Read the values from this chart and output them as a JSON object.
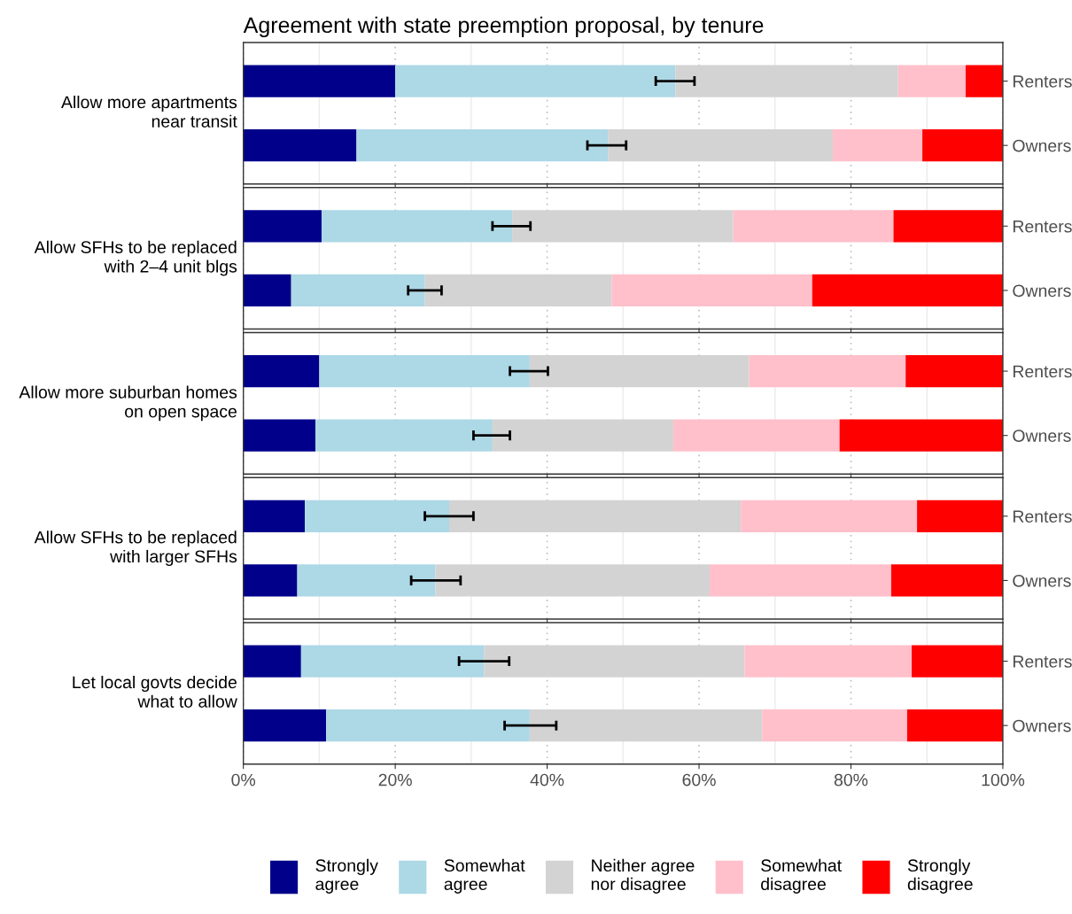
{
  "chart_data": [
    {
      "type": "bar",
      "orientation": "horizontal",
      "stacked": true,
      "title": "Agreement with state preemption proposal, by tenure",
      "ylabel": "Allow more apartments\nnear transit",
      "categories": [
        "Renters",
        "Owners"
      ],
      "xlim": [
        0,
        100
      ],
      "xticks": [
        {
          "value": 0,
          "label": null
        },
        {
          "value": 20,
          "label": null
        },
        {
          "value": 40,
          "label": null
        },
        {
          "value": 60,
          "label": null
        },
        {
          "value": 80,
          "label": null
        },
        {
          "value": 100,
          "label": null
        }
      ],
      "tick_labels": "y",
      "grid": "x",
      "legend": "bottom",
      "series": [
        {
          "name": "Strongly\nagree",
          "color": "#00008b",
          "values": [
            20.0,
            14.9
          ]
        },
        {
          "name": "Somewhat\nagree",
          "color": "#add8e6",
          "values": [
            36.9,
            33.1
          ],
          "errors": [
            [
              54.3,
              59.4
            ],
            [
              45.3,
              50.4
            ]
          ]
        },
        {
          "name": "Neither agree\nnor disagree",
          "color": "#d3d3d3",
          "values": [
            29.3,
            29.6
          ]
        },
        {
          "name": "Somewhat\ndisagree",
          "color": "#ffc0cb",
          "values": [
            8.9,
            11.8
          ]
        },
        {
          "name": "Strongly\ndisagree",
          "color": "#ff0000",
          "values": [
            4.9,
            10.6
          ]
        }
      ]
    },
    {
      "type": "bar",
      "orientation": "horizontal",
      "stacked": true,
      "ylabel": "Allow SFHs to be replaced\nwith 2–4 unit blgs",
      "categories": [
        "Renters",
        "Owners"
      ],
      "xlim": [
        0,
        100
      ],
      "xticks": [
        {
          "value": 0,
          "label": null
        },
        {
          "value": 20,
          "label": null
        },
        {
          "value": 40,
          "label": null
        },
        {
          "value": 60,
          "label": null
        },
        {
          "value": 80,
          "label": null
        },
        {
          "value": 100,
          "label": null
        }
      ],
      "tick_labels": "y",
      "grid": "x",
      "series": [
        {
          "color": "#00008b",
          "values": [
            10.3,
            6.3
          ]
        },
        {
          "color": "#add8e6",
          "values": [
            25.1,
            17.6
          ],
          "errors": [
            [
              32.8,
              37.8
            ],
            [
              21.7,
              26.1
            ]
          ]
        },
        {
          "color": "#d3d3d3",
          "values": [
            29.1,
            24.6
          ]
        },
        {
          "color": "#ffc0cb",
          "values": [
            21.1,
            26.4
          ]
        },
        {
          "color": "#ff0000",
          "values": [
            14.4,
            25.1
          ]
        }
      ]
    },
    {
      "type": "bar",
      "orientation": "horizontal",
      "stacked": true,
      "ylabel": "Allow more suburban homes\non open space",
      "categories": [
        "Renters",
        "Owners"
      ],
      "xlim": [
        0,
        100
      ],
      "xticks": [
        {
          "value": 0,
          "label": null
        },
        {
          "value": 20,
          "label": null
        },
        {
          "value": 40,
          "label": null
        },
        {
          "value": 60,
          "label": null
        },
        {
          "value": 80,
          "label": null
        },
        {
          "value": 100,
          "label": null
        }
      ],
      "tick_labels": "y",
      "grid": "x",
      "series": [
        {
          "color": "#00008b",
          "values": [
            10.0,
            9.5
          ]
        },
        {
          "color": "#add8e6",
          "values": [
            27.7,
            23.3
          ],
          "errors": [
            [
              35.1,
              40.1
            ],
            [
              30.3,
              35.1
            ]
          ]
        },
        {
          "color": "#d3d3d3",
          "values": [
            28.9,
            23.8
          ]
        },
        {
          "color": "#ffc0cb",
          "values": [
            20.6,
            21.9
          ]
        },
        {
          "color": "#ff0000",
          "values": [
            12.8,
            21.5
          ]
        }
      ]
    },
    {
      "type": "bar",
      "orientation": "horizontal",
      "stacked": true,
      "ylabel": "Allow SFHs to be replaced\nwith larger SFHs",
      "categories": [
        "Renters",
        "Owners"
      ],
      "xlim": [
        0,
        100
      ],
      "xticks": [
        {
          "value": 0,
          "label": null
        },
        {
          "value": 20,
          "label": null
        },
        {
          "value": 40,
          "label": null
        },
        {
          "value": 60,
          "label": null
        },
        {
          "value": 80,
          "label": null
        },
        {
          "value": 100,
          "label": null
        }
      ],
      "tick_labels": "y",
      "grid": "x",
      "series": [
        {
          "color": "#00008b",
          "values": [
            8.1,
            7.1
          ]
        },
        {
          "color": "#add8e6",
          "values": [
            19.0,
            18.2
          ],
          "errors": [
            [
              23.9,
              30.3
            ],
            [
              22.1,
              28.6
            ]
          ]
        },
        {
          "color": "#d3d3d3",
          "values": [
            38.4,
            36.1
          ]
        },
        {
          "color": "#ffc0cb",
          "values": [
            23.2,
            23.9
          ]
        },
        {
          "color": "#ff0000",
          "values": [
            11.3,
            14.7
          ]
        }
      ]
    },
    {
      "type": "bar",
      "orientation": "horizontal",
      "stacked": true,
      "ylabel": "Let local govts decide\nwhat to allow",
      "categories": [
        "Renters",
        "Owners"
      ],
      "xlim": [
        0,
        100
      ],
      "xticks": [
        {
          "value": 0,
          "label": "0%"
        },
        {
          "value": 20,
          "label": "20%"
        },
        {
          "value": 40,
          "label": "40%"
        },
        {
          "value": 60,
          "label": "60%"
        },
        {
          "value": 80,
          "label": "80%"
        },
        {
          "value": 100,
          "label": "100%"
        }
      ],
      "grid": "x",
      "series": [
        {
          "color": "#00008b",
          "values": [
            7.6,
            10.9
          ]
        },
        {
          "color": "#add8e6",
          "values": [
            24.1,
            26.8
          ],
          "errors": [
            [
              28.4,
              35.0
            ],
            [
              34.4,
              41.2
            ]
          ]
        },
        {
          "color": "#d3d3d3",
          "values": [
            34.3,
            30.6
          ]
        },
        {
          "color": "#ffc0cb",
          "values": [
            22.0,
            19.1
          ]
        },
        {
          "color": "#ff0000",
          "values": [
            12.0,
            12.6
          ]
        }
      ]
    }
  ]
}
